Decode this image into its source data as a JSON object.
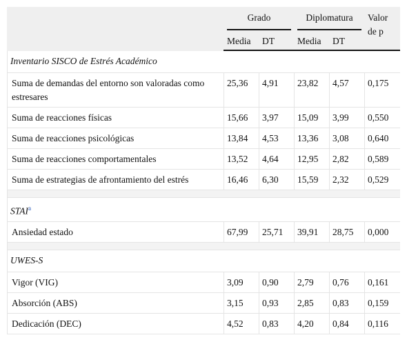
{
  "header": {
    "groups": [
      "Grado",
      "Diplomatura"
    ],
    "pvalue": [
      "Valor",
      "de p"
    ],
    "subheaders": [
      "Media",
      "DT",
      "Media",
      "DT"
    ]
  },
  "sections": [
    {
      "title": "Inventario SISCO de Estrés Académico",
      "rows": [
        [
          "Suma de demandas del entorno son valoradas como estresares",
          "25,36",
          "4,91",
          "23,82",
          "4,57",
          "0,175"
        ],
        [
          "Suma de reacciones físicas",
          "15,66",
          "3,97",
          "15,09",
          "3,99",
          "0,550"
        ],
        [
          "Suma de reacciones psicológicas",
          "13,84",
          "4,53",
          "13,36",
          "3,08",
          "0,640"
        ],
        [
          "Suma de reacciones comportamentales",
          "13,52",
          "4,64",
          "12,95",
          "2,82",
          "0,589"
        ],
        [
          "Suma de estrategias de afrontamiento del estrés",
          "16,46",
          "6,30",
          "15,59",
          "2,32",
          "0,529"
        ]
      ]
    },
    {
      "title": "STAI",
      "note": "a",
      "rows": [
        [
          "Ansiedad estado",
          "67,99",
          "25,71",
          "39,91",
          "28,75",
          "0,000"
        ]
      ]
    },
    {
      "title": "UWES-S",
      "rows": [
        [
          "Vigor (VIG)",
          "3,09",
          "0,90",
          "2,79",
          "0,76",
          "0,161"
        ],
        [
          "Absorción (ABS)",
          "3,15",
          "0,93",
          "2,85",
          "0,83",
          "0,159"
        ],
        [
          "Dedicación (DEC)",
          "4,52",
          "0,83",
          "4,20",
          "0,84",
          "0,116"
        ]
      ]
    }
  ]
}
